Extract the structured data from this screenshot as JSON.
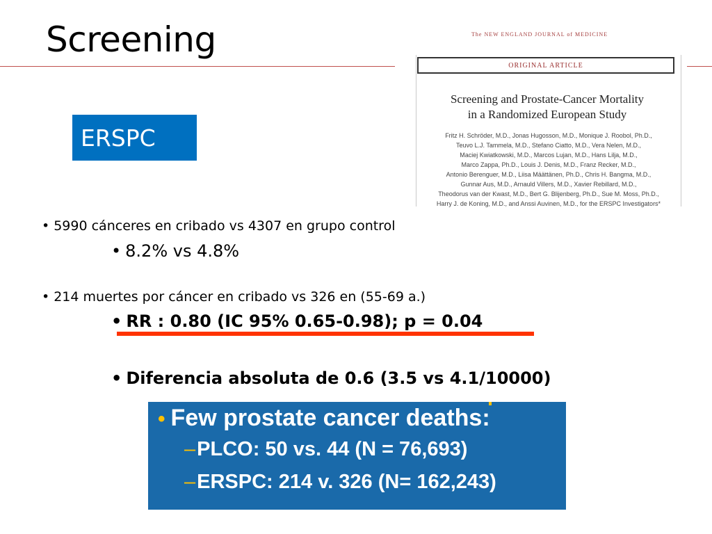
{
  "slide": {
    "title": "Screening",
    "box_label": "ERSPC",
    "colors": {
      "accent_blue": "#0070c0",
      "rule_red": "#c0504d",
      "underline": "#ff3300",
      "panel_blue": "#1a6aaa",
      "panel_bullet": "#ffc000"
    }
  },
  "article": {
    "journal": "The NEW ENGLAND JOURNAL of MEDICINE",
    "section": "ORIGINAL ARTICLE",
    "title_line1": "Screening and Prostate-Cancer Mortality",
    "title_line2": "in a Randomized European Study",
    "authors": [
      "Fritz H. Schröder, M.D., Jonas Hugosson, M.D., Monique J. Roobol, Ph.D.,",
      "Teuvo L.J. Tammela, M.D., Stefano Ciatto, M.D., Vera Nelen, M.D.,",
      "Maciej Kwiatkowski, M.D., Marcos Lujan, M.D., Hans Lilja, M.D.,",
      "Marco Zappa, Ph.D., Louis J. Denis, M.D., Franz Recker, M.D.,",
      "Antonio Berenguer, M.D., Liisa Määttänen, Ph.D., Chris H. Bangma, M.D.,",
      "Gunnar Aus, M.D., Arnauld Villers, M.D., Xavier Rebillard, M.D.,",
      "Theodorus van der Kwast, M.D., Bert G. Blijenberg, Ph.D., Sue M. Moss, Ph.D.,",
      "Harry J. de Koning, M.D., and Anssi Auvinen, M.D., for the ERSPC Investigators*"
    ]
  },
  "bullets": {
    "b1": "5990 cánceres en cribado  vs  4307 en grupo control",
    "b2": "8.2% vs 4.8%",
    "b3": "214 muertes por cáncer en cribado vs 326 en (55-69 a.)",
    "b4": "RR : 0.80 (IC 95% 0.65-0.98); p = 0.04",
    "b5": "Diferencia absoluta de 0.6 (3.5 vs 4.1/10000)",
    "bullet_char": "•"
  },
  "panel": {
    "heading": "Few prostate cancer deaths:",
    "item1": "PLCO: 50 vs. 44 (N = 76,693)",
    "item2": "ERSPC: 214 v. 326 (N= 162,243)",
    "bullet_char": "•",
    "dash_char": "–"
  }
}
